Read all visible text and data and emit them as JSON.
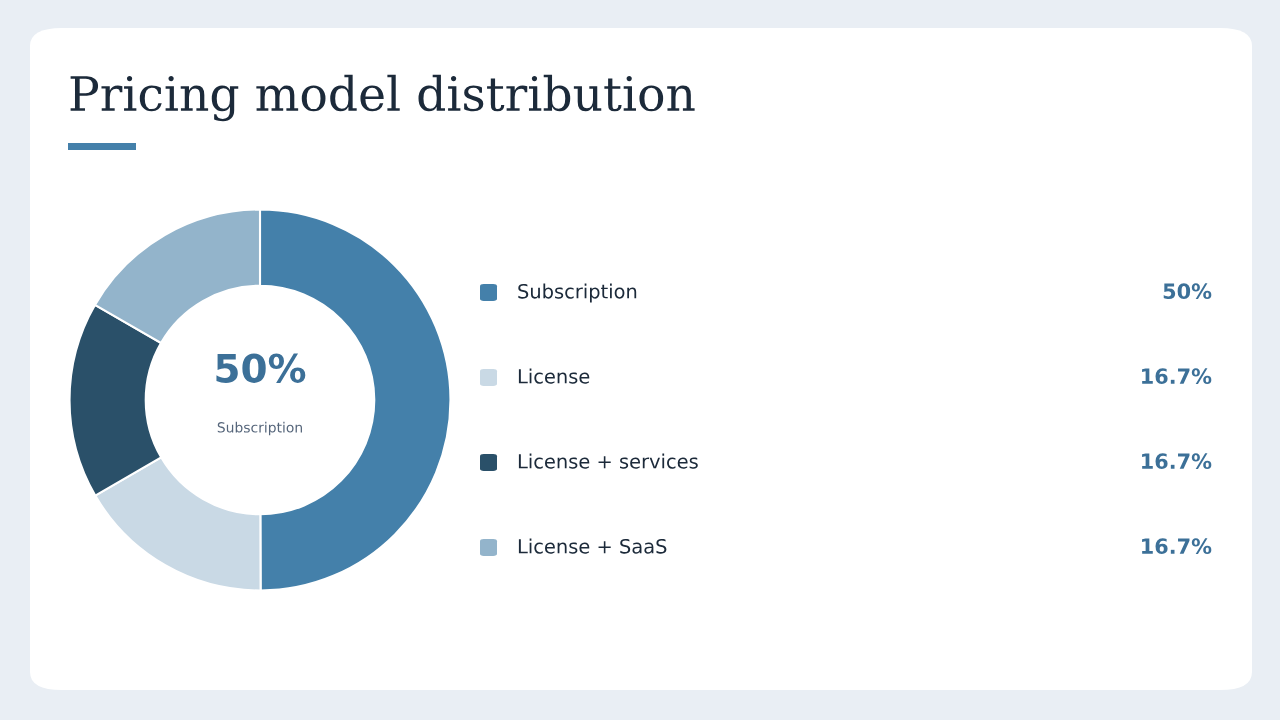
{
  "chart_data": {
    "type": "donut",
    "title": "Pricing model distribution",
    "categories": [
      "Subscription",
      "License",
      "License + services",
      "License + SaaS"
    ],
    "values": [
      50,
      16.7,
      16.7,
      16.7
    ],
    "colors": [
      "#4480aa",
      "#c9d9e5",
      "#2a5069",
      "#93b4cb"
    ],
    "value_labels": [
      "50%",
      "16.7%",
      "16.7%",
      "16.7%"
    ],
    "annotations": [
      "50%",
      "Subscription"
    ],
    "legend": "right"
  }
}
